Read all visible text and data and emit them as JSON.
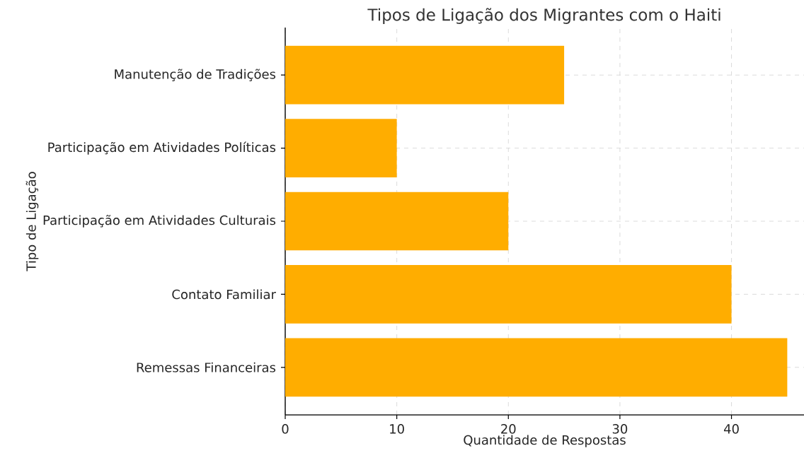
{
  "chart_data": {
    "type": "bar",
    "orientation": "horizontal",
    "title": "Tipos de Ligação dos Migrantes com o Haiti",
    "xlabel": "Quantidade de Respostas",
    "ylabel": "Tipo de Ligação",
    "categories": [
      "Manutenção de Tradições",
      "Participação em Atividades Políticas",
      "Participação em Atividades Culturais",
      "Contato Familiar",
      "Remessas Financeiras"
    ],
    "values": [
      25,
      10,
      20,
      40,
      45
    ],
    "color": "#ffad00",
    "xlim": [
      0,
      46.5
    ],
    "xticks": [
      0,
      10,
      20,
      30,
      40
    ],
    "grid": true
  }
}
